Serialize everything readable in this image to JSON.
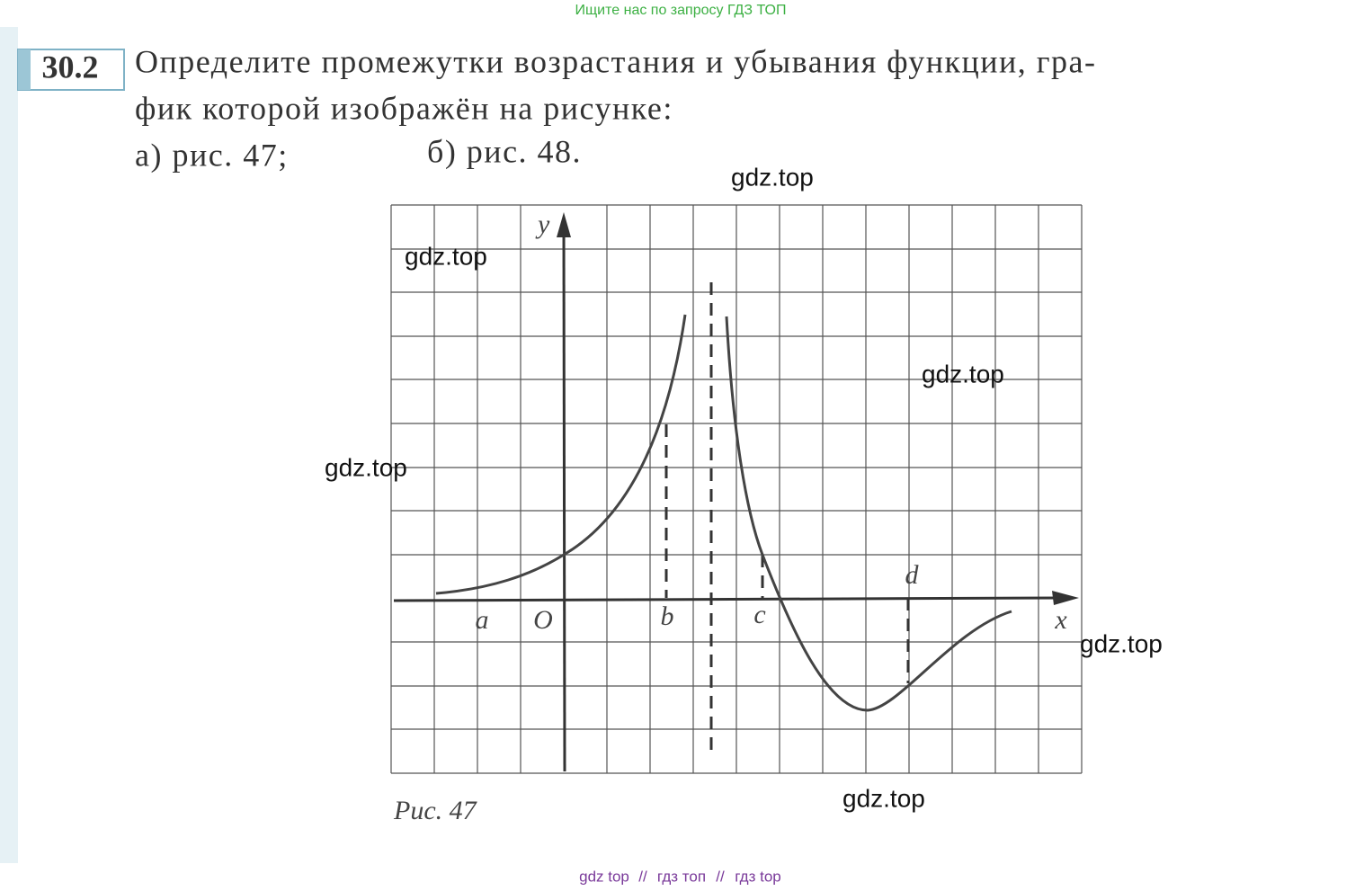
{
  "header": {
    "banner": "Ищите нас по запросу ГДЗ ТОП"
  },
  "problem": {
    "number": "30.2",
    "lines": [
      "Определите промежутки возрастания и убывания функции, гра-",
      "фик которой изображён на рисунке:"
    ],
    "parts": [
      "а) рис. 47;",
      "б) рис. 48."
    ]
  },
  "figure": {
    "axis_labels": {
      "x": "x",
      "y": "y"
    },
    "point_labels": [
      "a",
      "O",
      "b",
      "c",
      "d"
    ],
    "caption": "Рис. 47"
  },
  "watermarks": [
    "gdz.top",
    "gdz.top",
    "gdz.top",
    "gdz.top",
    "gdz.top",
    "gdz.top"
  ],
  "footer": {
    "links": [
      "gdz top",
      "гдз топ",
      "гдз top"
    ],
    "separator": "//"
  }
}
